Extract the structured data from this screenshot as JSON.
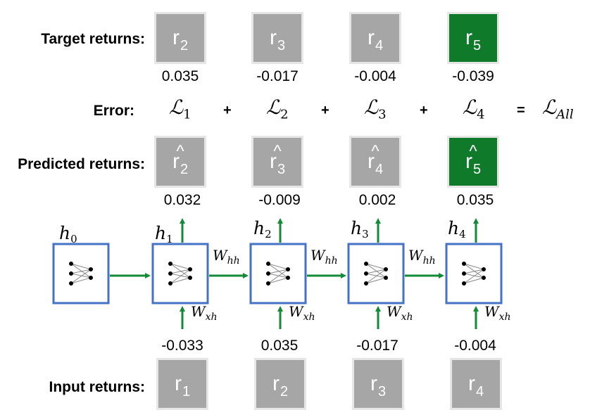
{
  "labels": {
    "target": "Target returns:",
    "error": "Error:",
    "predicted": "Predicted returns:",
    "input": "Input returns:"
  },
  "target": [
    {
      "sym": "r",
      "sub": "2",
      "value": "0.035"
    },
    {
      "sym": "r",
      "sub": "3",
      "value": "-0.017"
    },
    {
      "sym": "r",
      "sub": "4",
      "value": "-0.004"
    },
    {
      "sym": "r",
      "sub": "5",
      "value": "-0.039"
    }
  ],
  "predicted": [
    {
      "sym": "r",
      "hat": "^",
      "sub": "2",
      "value": "0.032"
    },
    {
      "sym": "r",
      "hat": "^",
      "sub": "3",
      "value": "-0.009"
    },
    {
      "sym": "r",
      "hat": "^",
      "sub": "4",
      "value": "0.002"
    },
    {
      "sym": "r",
      "hat": "^",
      "sub": "5",
      "value": "0.035"
    }
  ],
  "input": [
    {
      "sym": "r",
      "sub": "1",
      "value": "-0.033"
    },
    {
      "sym": "r",
      "sub": "2",
      "value": "0.035"
    },
    {
      "sym": "r",
      "sub": "3",
      "value": "-0.017"
    },
    {
      "sym": "r",
      "sub": "4",
      "value": "-0.004"
    }
  ],
  "error": {
    "terms": [
      {
        "sym": "ℒ",
        "sub": "1"
      },
      {
        "sym": "ℒ",
        "sub": "2"
      },
      {
        "sym": "ℒ",
        "sub": "3"
      },
      {
        "sym": "ℒ",
        "sub": "4"
      }
    ],
    "plus": "+",
    "equals": "=",
    "total": {
      "sym": "ℒ",
      "sub": "All"
    }
  },
  "hidden_states": [
    {
      "sym": "h",
      "sub": "0"
    },
    {
      "sym": "h",
      "sub": "1"
    },
    {
      "sym": "h",
      "sub": "2"
    },
    {
      "sym": "h",
      "sub": "3"
    },
    {
      "sym": "h",
      "sub": "4"
    }
  ],
  "weights": {
    "hh": {
      "sym": "W",
      "sub": "hh"
    },
    "xh": {
      "sym": "W",
      "sub": "xh"
    }
  },
  "colors": {
    "box_gray": "#a6a6a6",
    "box_green": "#0e7a2a",
    "cell_border": "#4472c4",
    "arrow_green": "#138a36"
  }
}
